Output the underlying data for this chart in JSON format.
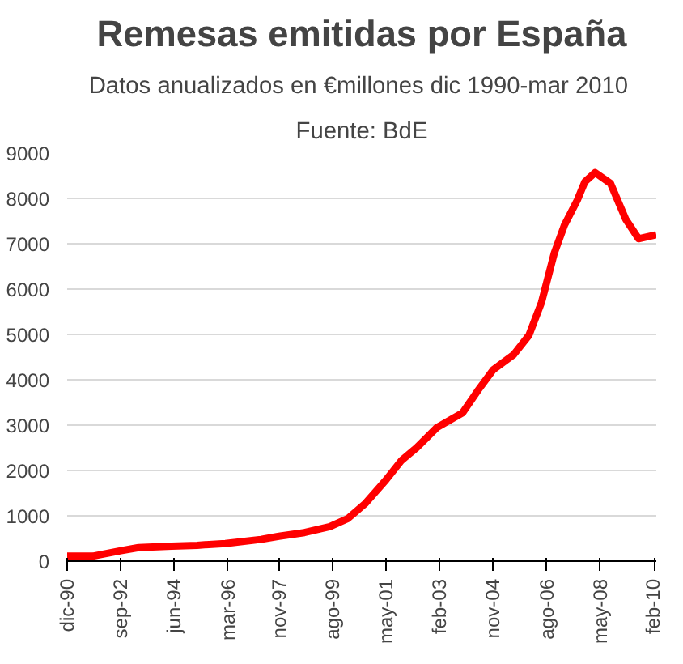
{
  "chart_data": {
    "type": "line",
    "title": "Remesas emitidas por España",
    "subtitle": "Datos anualizados en €millones dic 1990-mar  2010",
    "annotations": [
      "Fuente: BdE"
    ],
    "x": [
      "1990-12",
      "1991-10",
      "1992-09",
      "1993-04",
      "1994-05",
      "1995-03",
      "1996-02",
      "1997-04",
      "1997-11",
      "1998-09",
      "1999-07",
      "2000-02",
      "2000-09",
      "2001-05",
      "2001-11",
      "2002-05",
      "2003-01",
      "2003-11",
      "2004-05",
      "2004-11",
      "2005-07",
      "2006-01",
      "2006-06",
      "2006-11",
      "2007-03",
      "2007-08",
      "2007-11",
      "2008-03",
      "2008-09",
      "2009-03",
      "2009-08",
      "2010-03"
    ],
    "series": [
      {
        "color": "#ff0000",
        "values": [
          110,
          110,
          230,
          300,
          330,
          350,
          390,
          480,
          550,
          630,
          760,
          940,
          1280,
          1790,
          2220,
          2500,
          2950,
          3270,
          3760,
          4220,
          4550,
          4980,
          5710,
          6800,
          7410,
          7960,
          8370,
          8570,
          8330,
          7540,
          7110,
          7200
        ]
      }
    ],
    "xlim": [
      "1990-12",
      "2010-03"
    ],
    "xticks": [
      {
        "value": "1990-12",
        "label": "dic-90"
      },
      {
        "value": "1992-09",
        "label": "sep-92"
      },
      {
        "value": "1994-06",
        "label": "jun-94"
      },
      {
        "value": "1996-03",
        "label": "mar-96"
      },
      {
        "value": "1997-11",
        "label": "nov-97"
      },
      {
        "value": "1999-08",
        "label": "ago-99"
      },
      {
        "value": "2001-05",
        "label": "may-01"
      },
      {
        "value": "2003-02",
        "label": "feb-03"
      },
      {
        "value": "2004-11",
        "label": "nov-04"
      },
      {
        "value": "2006-08",
        "label": "ago-06"
      },
      {
        "value": "2008-05",
        "label": "may-08"
      },
      {
        "value": "2010-02",
        "label": "feb-10"
      }
    ],
    "ylim": [
      0,
      9000
    ],
    "yticks": [
      0,
      1000,
      2000,
      3000,
      4000,
      5000,
      6000,
      7000,
      8000,
      9000
    ],
    "grid": "y",
    "marker": "none",
    "line_style": "solid"
  }
}
